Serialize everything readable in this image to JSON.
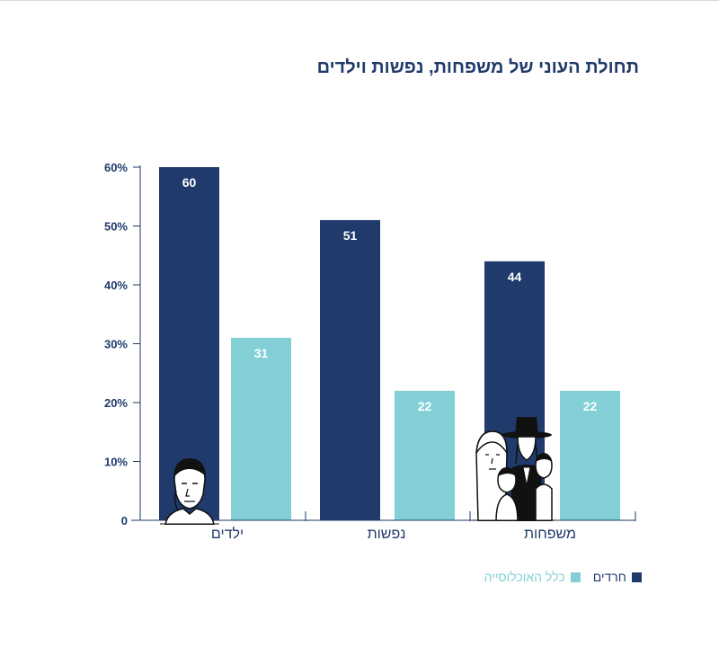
{
  "title": "תחולת העוני של משפחות, נפשות וילדים",
  "colors": {
    "haredim": "#1f3a6b",
    "general": "#82d0d6",
    "axis": "#1f3a6b",
    "page": "#ffffff"
  },
  "legend": [
    {
      "label": "חרדים",
      "color": "#1f3a6b"
    },
    {
      "label": "כלל האוכלוסייה",
      "color": "#82d0d6"
    }
  ],
  "chart_data": {
    "type": "bar",
    "title": "תחולת העוני של משפחות, נפשות וילדים",
    "categories": [
      "ילדים",
      "נפשות",
      "משפחות"
    ],
    "series": [
      {
        "name": "חרדים",
        "values": [
          60,
          51,
          44
        ]
      },
      {
        "name": "כלל האוכלוסייה",
        "values": [
          31,
          22,
          22
        ]
      }
    ],
    "yticks": [
      "0",
      "10%",
      "20%",
      "30%",
      "40%",
      "50%",
      "60%"
    ],
    "ylim": [
      0,
      60
    ],
    "grid": false,
    "legend_position": "bottom"
  },
  "illustrations": [
    {
      "icon": "child-illustration-icon"
    },
    {
      "icon": "haredi-family-illustration-icon"
    }
  ]
}
